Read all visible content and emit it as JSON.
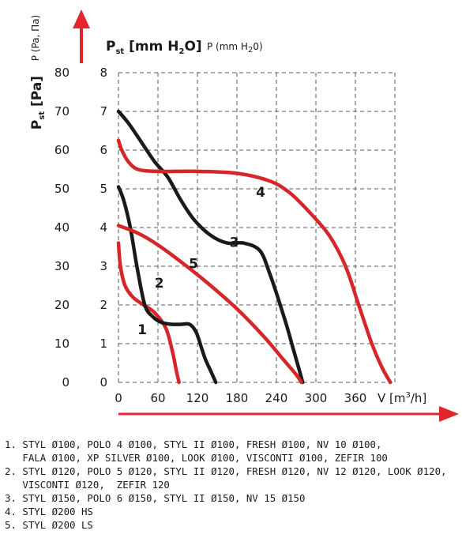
{
  "chart_data": {
    "type": "line",
    "y_axis_left": {
      "label_main": "P",
      "label_sub": "st",
      "label_unit": " [Pa]",
      "label_small": "P (Pa, Па)",
      "ticks": [
        0,
        10,
        20,
        30,
        40,
        50,
        60,
        70,
        80
      ]
    },
    "y_axis_right": {
      "label_main": "P",
      "label_sub": "st",
      "label_unit": " [mm H",
      "label_unit_sub": "2",
      "label_unit_end": "O]",
      "label_small": "P (mm H",
      "label_small_sub": "2",
      "label_small_end": "0)",
      "ticks": [
        0,
        1,
        2,
        3,
        4,
        5,
        6,
        7,
        8
      ]
    },
    "x_axis": {
      "label": "V [m",
      "label_sup": "3",
      "label_end": "/h]",
      "ticks": [
        0,
        60,
        120,
        180,
        240,
        300,
        360
      ]
    },
    "xlim": [
      0,
      420
    ],
    "ylim": [
      0,
      80
    ],
    "grid": true,
    "series": [
      {
        "name": "1",
        "color": "#d7262a",
        "x": [
          0,
          3,
          10,
          22,
          38,
          55,
          72,
          82,
          88,
          92
        ],
        "y": [
          36,
          30,
          25,
          22,
          20,
          18,
          14,
          8,
          3,
          0
        ]
      },
      {
        "name": "2",
        "color": "#1a1a1a",
        "x": [
          0,
          8,
          18,
          28,
          40,
          52,
          65,
          80,
          96,
          108,
          118,
          126,
          132,
          140,
          148
        ],
        "y": [
          50.5,
          47,
          40,
          30,
          20,
          17,
          15.5,
          15,
          15,
          15,
          13,
          9,
          6,
          3,
          0
        ]
      },
      {
        "name": "3",
        "color": "#1a1a1a",
        "x": [
          0,
          15,
          35,
          55,
          75,
          95,
          115,
          140,
          165,
          190,
          215,
          230,
          242,
          255,
          265,
          275,
          280
        ],
        "y": [
          70,
          67,
          62,
          57,
          53,
          47,
          42,
          38,
          36,
          36,
          34,
          28,
          22,
          15,
          9,
          3,
          0
        ]
      },
      {
        "name": "4",
        "color": "#d7262a",
        "x": [
          0,
          5,
          15,
          30,
          60,
          120,
          180,
          230,
          260,
          290,
          320,
          345,
          365,
          385,
          400,
          413
        ],
        "y": [
          62.5,
          60,
          57,
          55,
          54.5,
          54.5,
          54,
          52,
          49,
          44,
          38,
          30,
          20,
          10,
          4,
          0
        ]
      },
      {
        "name": "5",
        "color": "#d7262a",
        "x": [
          0,
          30,
          60,
          100,
          140,
          180,
          220,
          250,
          270,
          278
        ],
        "y": [
          40.5,
          38.5,
          35.5,
          30.5,
          25,
          19,
          12,
          6,
          2,
          0
        ]
      }
    ],
    "curve_labels": [
      {
        "text": "1",
        "x": 36,
        "y": 12.5
      },
      {
        "text": "2",
        "x": 62,
        "y": 24.5
      },
      {
        "text": "3",
        "x": 176,
        "y": 35
      },
      {
        "text": "4",
        "x": 216,
        "y": 48
      },
      {
        "text": "5",
        "x": 114,
        "y": 29.5
      }
    ]
  },
  "legend": [
    "1. STYL Ø100, POLO 4 Ø100, STYL II Ø100, FRESH Ø100, NV 10 Ø100,",
    "   FALA Ø100, XP SILVER Ø100, LOOK Ø100, VISCONTI Ø100, ZEFIR 100",
    "2. STYL Ø120, POLO 5 Ø120, STYL II Ø120, FRESH Ø120, NV 12 Ø120, LOOK Ø120,",
    "   VISCONTI Ø120,  ZEFIR 120",
    "3. STYL Ø150, POLO 6 Ø150, STYL II Ø150, NV 15 Ø150",
    "4. STYL Ø200 HS",
    "5. STYL Ø200 LS"
  ],
  "colors": {
    "red": "#d7262a",
    "black": "#1a1a1a",
    "grid": "#555555"
  }
}
